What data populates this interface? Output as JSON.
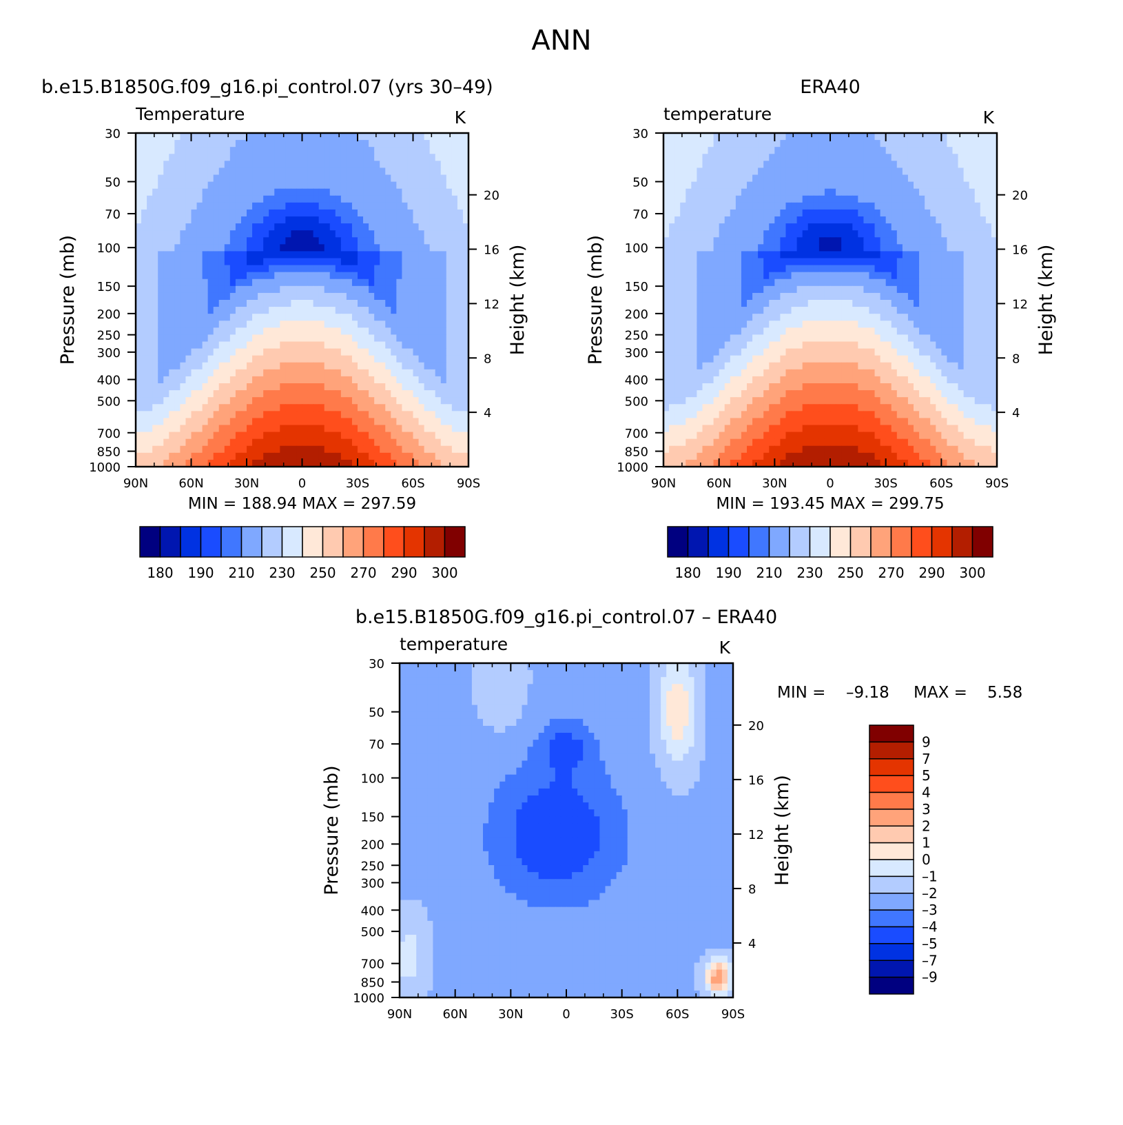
{
  "figure_title": "ANN",
  "colors": {
    "abs_palette": [
      "#000080",
      "#0016b0",
      "#0032e2",
      "#1a4cff",
      "#4077ff",
      "#7fa8ff",
      "#b3ccff",
      "#d8e9ff",
      "#ffe8d8",
      "#ffcab0",
      "#ffa37a",
      "#ff7a4a",
      "#ff4e1c",
      "#e43400",
      "#b31e00",
      "#800000"
    ],
    "diff_palette": [
      "#000080",
      "#0016b0",
      "#0032e2",
      "#1a4cff",
      "#4077ff",
      "#7fa8ff",
      "#b3ccff",
      "#d8e9ff",
      "#ffe8d8",
      "#ffcab0",
      "#ffa37a",
      "#ff7a4a",
      "#ff4e1c",
      "#e43400",
      "#b31e00",
      "#800000"
    ]
  },
  "chart_data": [
    {
      "type": "heatmap",
      "panel_title": "b.e15.B1850G.f09_g16.pi_control.07 (yrs 30–49)",
      "var_label": "Temperature",
      "units": "K",
      "ylabel": "Pressure (mb)",
      "y2label": "Height (km)",
      "x_ticks": [
        "90N",
        "60N",
        "30N",
        "0",
        "30S",
        "60S",
        "90S"
      ],
      "y_ticks": [
        "30",
        "50",
        "70",
        "100",
        "150",
        "200",
        "250",
        "300",
        "400",
        "500",
        "700",
        "850",
        "1000"
      ],
      "y2_ticks": [
        "20",
        "16",
        "12",
        "8",
        "4"
      ],
      "stats": {
        "min_label": "MIN =",
        "min": "188.94",
        "max_label": "MAX =",
        "max": "297.59"
      },
      "colorbar_labels": [
        "180",
        "190",
        "210",
        "230",
        "250",
        "270",
        "290",
        "300"
      ],
      "bands": [
        {
          "level": 195,
          "color_index": 4
        },
        {
          "level": 190,
          "color_index": 3
        },
        {
          "level": 186,
          "color_index": 2
        }
      ],
      "levels_kind": "abs"
    },
    {
      "type": "heatmap",
      "panel_title": "ERA40",
      "var_label": "temperature",
      "units": "K",
      "ylabel": "Pressure (mb)",
      "y2label": "Height (km)",
      "x_ticks": [
        "90N",
        "60N",
        "30N",
        "0",
        "30S",
        "60S",
        "90S"
      ],
      "y_ticks": [
        "30",
        "50",
        "70",
        "100",
        "150",
        "200",
        "250",
        "300",
        "400",
        "500",
        "700",
        "850",
        "1000"
      ],
      "y2_ticks": [
        "20",
        "16",
        "12",
        "8",
        "4"
      ],
      "stats": {
        "min_label": "MIN =",
        "min": "193.45",
        "max_label": "MAX =",
        "max": "299.75"
      },
      "colorbar_labels": [
        "180",
        "190",
        "210",
        "230",
        "250",
        "270",
        "290",
        "300"
      ],
      "levels_kind": "abs"
    },
    {
      "type": "heatmap",
      "panel_title": "b.e15.B1850G.f09_g16.pi_control.07 – ERA40",
      "var_label": "temperature",
      "units": "K",
      "ylabel": "Pressure (mb)",
      "y2label": "Height (km)",
      "x_ticks": [
        "90N",
        "60N",
        "30N",
        "0",
        "30S",
        "60S",
        "90S"
      ],
      "y_ticks": [
        "30",
        "50",
        "70",
        "100",
        "150",
        "200",
        "250",
        "300",
        "400",
        "500",
        "700",
        "850",
        "1000"
      ],
      "y2_ticks": [
        "20",
        "16",
        "12",
        "8",
        "4"
      ],
      "stats": {
        "min_label": "MIN =",
        "min": "–9.18",
        "max_label": "MAX =",
        "max": "5.58"
      },
      "colorbar_labels": [
        "9",
        "7",
        "5",
        "4",
        "3",
        "2",
        "1",
        "0",
        "–1",
        "–2",
        "–3",
        "–4",
        "–5",
        "–7",
        "–9"
      ],
      "levels_kind": "diff"
    }
  ]
}
